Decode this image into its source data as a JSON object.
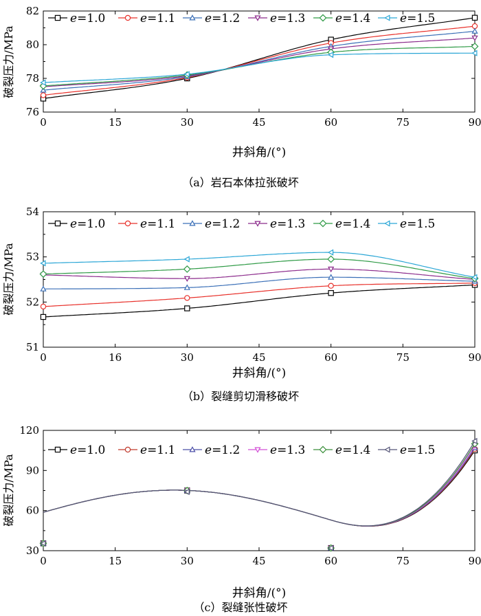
{
  "figure": {
    "panels": [
      {
        "caption": "（a）岩石本体拉张破坏"
      },
      {
        "caption": "（b）裂缝剪切滑移破坏"
      },
      {
        "caption": "（c）裂缝张性破坏"
      }
    ]
  },
  "chart_data": [
    {
      "type": "line",
      "caption": "（a）岩石本体拉张破坏",
      "xlabel": "井斜角/(°)",
      "ylabel": "破裂压力/MPa",
      "xticks": [
        0,
        15,
        30,
        45,
        60,
        75,
        90
      ],
      "yticks": [
        76,
        78,
        80,
        82
      ],
      "xlim": [
        0,
        90
      ],
      "ylim": [
        76,
        82
      ],
      "legend": "top, single row",
      "x": [
        0,
        30,
        60,
        90
      ],
      "series": [
        {
          "name": "e=1.0",
          "values": [
            76.8,
            78.0,
            80.3,
            81.6
          ],
          "color": "#000000",
          "marker": "square"
        },
        {
          "name": "e=1.1",
          "values": [
            77.0,
            78.05,
            80.1,
            81.1
          ],
          "color": "#e8302a",
          "marker": "circle"
        },
        {
          "name": "e=1.2",
          "values": [
            77.3,
            78.1,
            79.9,
            80.8
          ],
          "color": "#3a6fb7",
          "marker": "triangle-up"
        },
        {
          "name": "e=1.3",
          "values": [
            77.5,
            78.15,
            79.75,
            80.4
          ],
          "color": "#8b2a8b",
          "marker": "triangle-down"
        },
        {
          "name": "e=1.4",
          "values": [
            77.55,
            78.2,
            79.55,
            79.9
          ],
          "color": "#2e9a45",
          "marker": "diamond"
        },
        {
          "name": "e=1.5",
          "values": [
            77.75,
            78.25,
            79.4,
            79.5
          ],
          "color": "#2aa6d6",
          "marker": "triangle-left"
        }
      ]
    },
    {
      "type": "line",
      "caption": "（b）裂缝剪切滑移破坏",
      "xlabel": "井斜角/(°)",
      "ylabel": "破裂压力/MPa",
      "xticks": [
        0,
        16,
        30,
        45,
        60,
        75,
        90
      ],
      "yticks": [
        51,
        52,
        53,
        54
      ],
      "xlim": [
        0,
        90
      ],
      "ylim": [
        51,
        54
      ],
      "legend": "top, single row",
      "x": [
        0,
        30,
        60,
        90
      ],
      "series": [
        {
          "name": "e=1.0",
          "values": [
            51.67,
            51.86,
            52.2,
            52.38
          ],
          "color": "#000000",
          "marker": "square"
        },
        {
          "name": "e=1.1",
          "values": [
            51.9,
            52.09,
            52.36,
            52.42
          ],
          "color": "#e8302a",
          "marker": "circle"
        },
        {
          "name": "e=1.2",
          "values": [
            52.29,
            52.32,
            52.55,
            52.46
          ],
          "color": "#3a6fb7",
          "marker": "triangle-up"
        },
        {
          "name": "e=1.3",
          "values": [
            52.6,
            52.52,
            52.73,
            52.5
          ],
          "color": "#8b2a8b",
          "marker": "triangle-down"
        },
        {
          "name": "e=1.4",
          "values": [
            52.62,
            52.73,
            52.95,
            52.52
          ],
          "color": "#2e9a45",
          "marker": "diamond"
        },
        {
          "name": "e=1.5",
          "values": [
            52.86,
            52.95,
            53.1,
            52.55
          ],
          "color": "#2aa6d6",
          "marker": "triangle-left"
        }
      ]
    },
    {
      "type": "line",
      "caption": "（c）裂缝张性破坏",
      "xlabel": "井斜角/(°)",
      "ylabel": "破裂压力/MPa",
      "xticks": [
        0,
        15,
        30,
        45,
        60,
        75,
        90
      ],
      "yticks": [
        30,
        60,
        90,
        120
      ],
      "xlim": [
        0,
        90
      ],
      "ylim": [
        30,
        120
      ],
      "legend": "top, single row",
      "x": [
        0,
        30,
        60,
        90
      ],
      "curve_shape": "sinusoidal, peak near 27°, trough near 60°",
      "series": [
        {
          "name": "e=1.0",
          "values": [
            35.5,
            75,
            32,
            105
          ],
          "color": "#000000",
          "marker": "square"
        },
        {
          "name": "e=1.1",
          "values": [
            35.5,
            75,
            32,
            106
          ],
          "color": "#c0392b",
          "marker": "circle"
        },
        {
          "name": "e=1.2",
          "values": [
            35.5,
            75,
            32,
            107
          ],
          "color": "#4b4fa8",
          "marker": "triangle-up"
        },
        {
          "name": "e=1.3",
          "values": [
            35.5,
            75,
            32,
            108.5
          ],
          "color": "#d24fd6",
          "marker": "triangle-down"
        },
        {
          "name": "e=1.4",
          "values": [
            35.5,
            75,
            32,
            110
          ],
          "color": "#3b8f3b",
          "marker": "diamond"
        },
        {
          "name": "e=1.5",
          "values": [
            35.5,
            74,
            32,
            112
          ],
          "color": "#555577",
          "marker": "triangle-left"
        }
      ]
    }
  ]
}
